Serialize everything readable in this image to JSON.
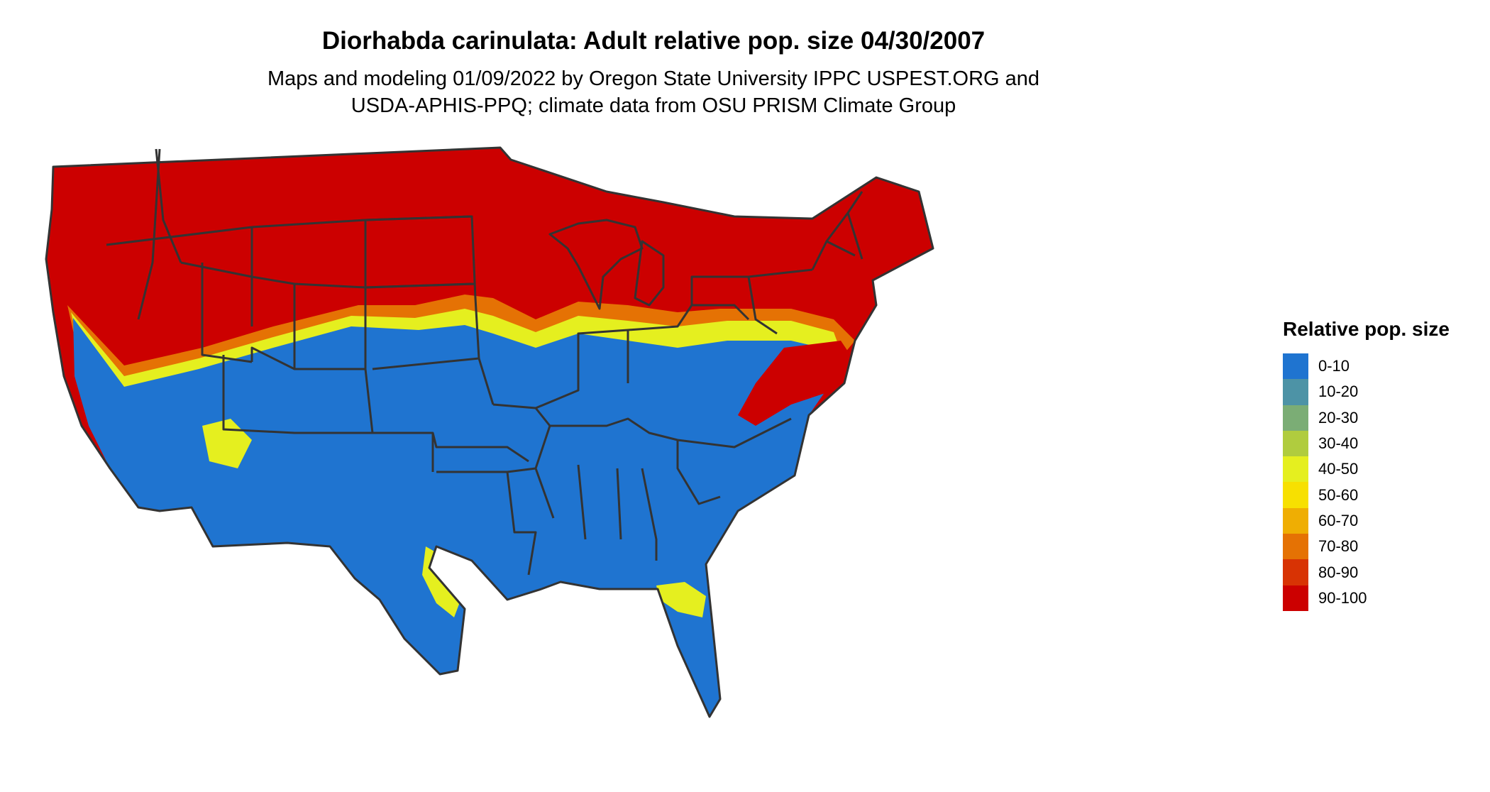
{
  "header": {
    "title": "Diorhabda carinulata: Adult relative pop. size 04/30/2007",
    "subtitle_line1": "Maps and modeling 01/09/2022 by Oregon State University IPPC USPEST.ORG and",
    "subtitle_line2": "USDA-APHIS-PPQ; climate data from OSU PRISM Climate Group"
  },
  "legend": {
    "title": "Relative pop. size",
    "items": [
      {
        "label": "0-10",
        "color": "#1f74d0"
      },
      {
        "label": "10-20",
        "color": "#4d93a6"
      },
      {
        "label": "20-30",
        "color": "#7bad75"
      },
      {
        "label": "30-40",
        "color": "#b0cc3e"
      },
      {
        "label": "40-50",
        "color": "#e5ef1f"
      },
      {
        "label": "50-60",
        "color": "#f7e001"
      },
      {
        "label": "60-70",
        "color": "#efae03"
      },
      {
        "label": "70-80",
        "color": "#e57204"
      },
      {
        "label": "80-90",
        "color": "#d83304"
      },
      {
        "label": "90-100",
        "color": "#cc0000"
      }
    ]
  },
  "map": {
    "region": "Contiguous United States",
    "colors": {
      "high": "#cc0000",
      "low": "#1f74d0",
      "mid_yellow": "#e5ef1f",
      "mid_orange": "#e57204",
      "border": "#333333"
    }
  }
}
